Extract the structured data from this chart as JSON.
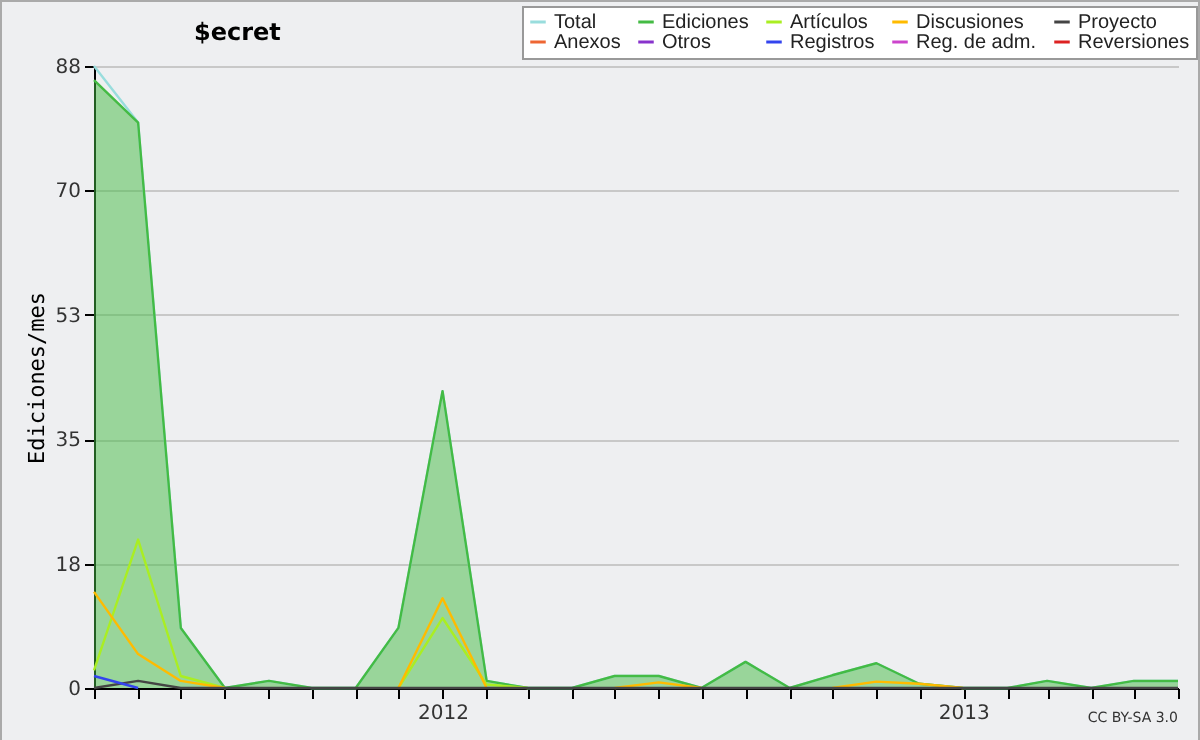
{
  "chart_data": {
    "type": "line",
    "title": "$ecret",
    "ylabel": "Ediciones/mes",
    "annotations": [
      "CC BY-SA 3.0"
    ],
    "x": [
      "2011-05",
      "2011-06",
      "2011-07",
      "2011-08",
      "2011-09",
      "2011-10",
      "2011-11",
      "2011-12",
      "2012-01",
      "2012-02",
      "2012-03",
      "2012-04",
      "2012-05",
      "2012-06",
      "2012-07",
      "2012-08",
      "2012-09",
      "2012-10",
      "2012-11",
      "2012-12",
      "2013-01",
      "2013-02",
      "2013-03",
      "2013-04",
      "2013-05",
      "2013-06"
    ],
    "series": [
      {
        "name": "Total",
        "color": "#99dddd",
        "values": [
          88,
          80,
          8.5,
          0,
          1,
          0,
          0,
          8.5,
          42,
          1,
          0,
          0,
          1.7,
          1.7,
          0,
          3.7,
          0,
          1.8,
          3.5,
          0.6,
          0,
          0,
          1,
          0,
          1,
          1
        ]
      },
      {
        "name": "Ediciones",
        "type": "area",
        "color": "#44bb44",
        "values": [
          86,
          80,
          8.5,
          0,
          1,
          0,
          0,
          8.5,
          42,
          1,
          0,
          0,
          1.7,
          1.7,
          0,
          3.7,
          0,
          1.8,
          3.5,
          0.6,
          0,
          0,
          1,
          0,
          1,
          1
        ]
      },
      {
        "name": "Artículos",
        "color": "#aaee22",
        "values": [
          2.5,
          21,
          1.7,
          0,
          null,
          null,
          null,
          0,
          9.9,
          0.5,
          0,
          null,
          null,
          null,
          null,
          null,
          null,
          null,
          null,
          null,
          null,
          null,
          null,
          null,
          null,
          null
        ]
      },
      {
        "name": "Discusiones",
        "color": "#ffbb00",
        "values": [
          13.6,
          4.8,
          1,
          0,
          null,
          null,
          null,
          0,
          12.7,
          0,
          null,
          null,
          0,
          0.8,
          0,
          null,
          null,
          0,
          0.9,
          0.6,
          0,
          null,
          null,
          null,
          null,
          null
        ]
      },
      {
        "name": "Proyecto",
        "color": "#444444",
        "values": [
          0,
          1,
          0,
          0,
          0,
          0,
          0,
          0,
          0,
          0,
          0,
          0,
          0,
          0,
          0,
          0,
          0,
          0,
          0,
          0,
          0,
          0,
          0,
          0,
          0,
          0
        ]
      },
      {
        "name": "Anexos",
        "color": "#ee6633",
        "values": [
          null,
          null,
          null,
          null,
          null,
          null,
          null,
          null,
          null,
          null,
          null,
          null,
          null,
          null,
          null,
          null,
          null,
          null,
          null,
          null,
          null,
          null,
          null,
          null,
          null,
          null
        ]
      },
      {
        "name": "Otros",
        "color": "#8833cc",
        "values": [
          null,
          null,
          null,
          null,
          null,
          null,
          null,
          null,
          null,
          null,
          null,
          null,
          null,
          null,
          null,
          null,
          null,
          null,
          null,
          null,
          null,
          null,
          null,
          null,
          null,
          null
        ]
      },
      {
        "name": "Registros",
        "color": "#3344ee",
        "values": [
          1.7,
          0,
          null,
          null,
          null,
          null,
          null,
          null,
          null,
          null,
          null,
          null,
          null,
          null,
          null,
          null,
          null,
          null,
          null,
          null,
          null,
          null,
          null,
          null,
          null,
          null
        ]
      },
      {
        "name": "Reg. de adm.",
        "color": "#cc44cc",
        "values": [
          null,
          null,
          null,
          null,
          null,
          null,
          null,
          null,
          null,
          null,
          null,
          null,
          null,
          null,
          null,
          null,
          null,
          null,
          null,
          null,
          null,
          null,
          null,
          null,
          null,
          null
        ]
      },
      {
        "name": "Reversiones",
        "color": "#dd2222",
        "values": [
          null,
          null,
          null,
          null,
          null,
          null,
          null,
          null,
          null,
          null,
          null,
          null,
          null,
          null,
          null,
          null,
          null,
          null,
          null,
          null,
          null,
          null,
          null,
          null,
          null,
          null
        ]
      }
    ],
    "xlim": [
      "2011-05",
      "2013-06"
    ],
    "xticks": [
      {
        "value": "2011-05",
        "label": null
      },
      {
        "value": "2011-06",
        "label": null
      },
      {
        "value": "2011-07",
        "label": null
      },
      {
        "value": "2011-08",
        "label": null
      },
      {
        "value": "2011-09",
        "label": null
      },
      {
        "value": "2011-10",
        "label": null
      },
      {
        "value": "2011-11",
        "label": null
      },
      {
        "value": "2011-12",
        "label": null
      },
      {
        "value": "2012-01",
        "label": "2012"
      },
      {
        "value": "2012-02",
        "label": null
      },
      {
        "value": "2012-03",
        "label": null
      },
      {
        "value": "2012-04",
        "label": null
      },
      {
        "value": "2012-05",
        "label": null
      },
      {
        "value": "2012-06",
        "label": null
      },
      {
        "value": "2012-07",
        "label": null
      },
      {
        "value": "2012-08",
        "label": null
      },
      {
        "value": "2012-09",
        "label": null
      },
      {
        "value": "2012-10",
        "label": null
      },
      {
        "value": "2012-11",
        "label": null
      },
      {
        "value": "2012-12",
        "label": null
      },
      {
        "value": "2013-01",
        "label": "2013"
      },
      {
        "value": "2013-02",
        "label": null
      },
      {
        "value": "2013-03",
        "label": null
      },
      {
        "value": "2013-04",
        "label": null
      },
      {
        "value": "2013-05",
        "label": null
      },
      {
        "value": "2013-06",
        "label": null
      }
    ],
    "ylim": [
      0,
      88
    ],
    "yticks": [
      0,
      {
        "value": 17.6,
        "label": "18"
      },
      {
        "value": 35.2,
        "label": "35"
      },
      {
        "value": 52.8,
        "label": "53"
      },
      {
        "value": 70.4,
        "label": "70"
      },
      88
    ],
    "grid": "y",
    "legend": "top right"
  }
}
